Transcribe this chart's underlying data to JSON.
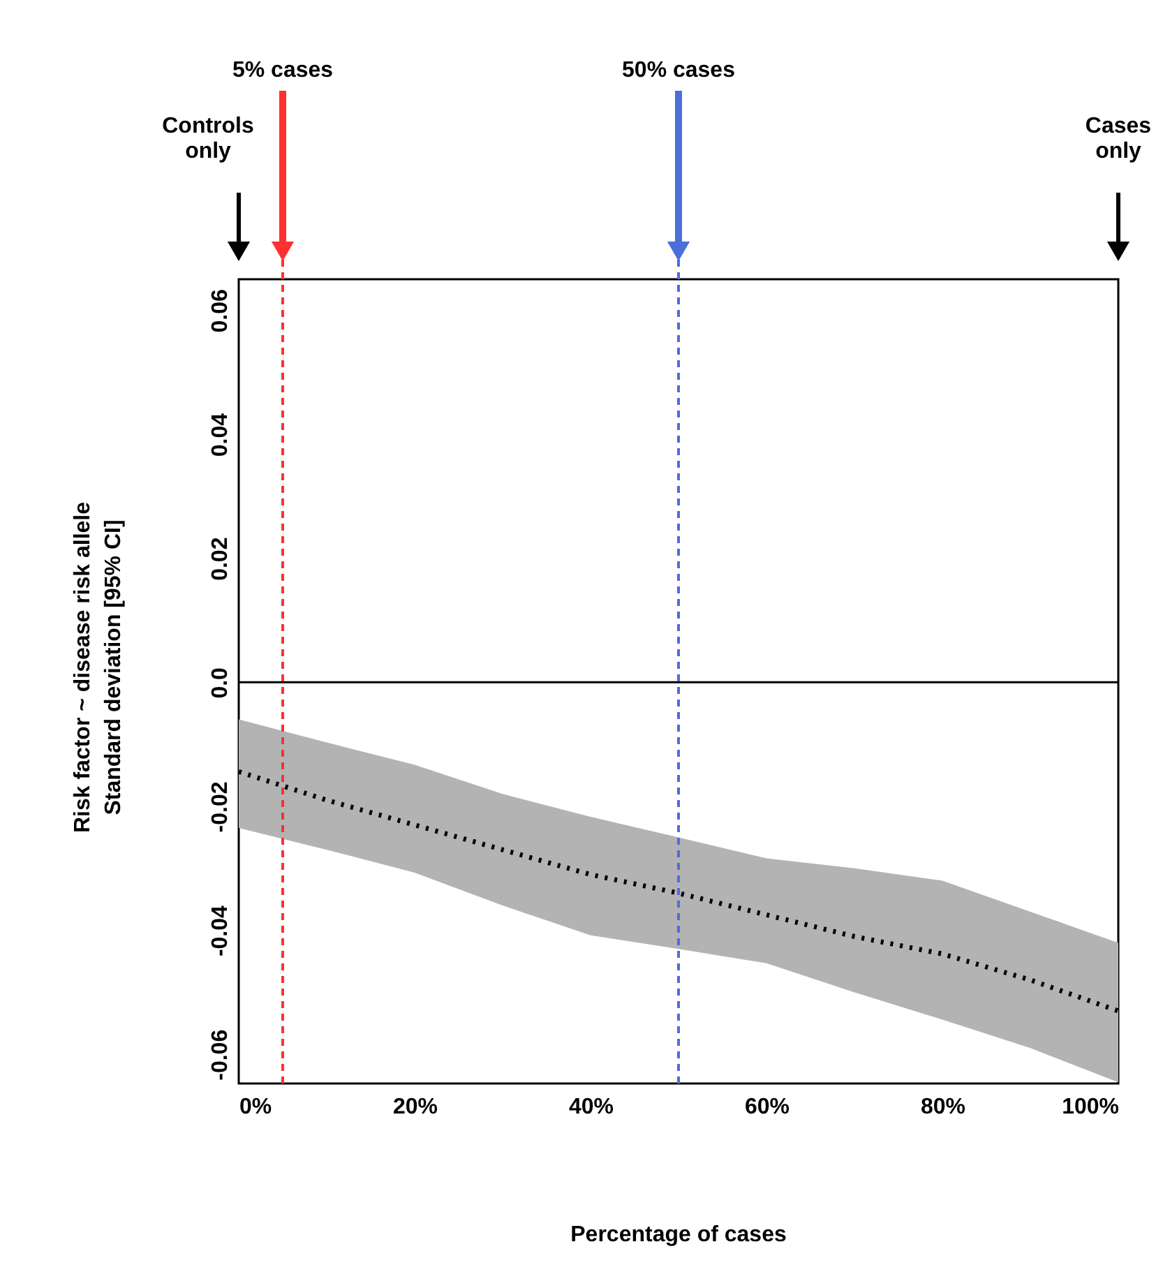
{
  "chart_data": {
    "type": "line",
    "xlabel": "Percentage of cases",
    "ylabel": "Risk factor ~ disease risk allele\nStandard deviation [95% CI]",
    "x": [
      0,
      10,
      20,
      30,
      40,
      50,
      60,
      70,
      80,
      90,
      100
    ],
    "series": [
      {
        "color": "#000000",
        "line_style": "dotted",
        "values": [
          -0.0144,
          -0.019,
          -0.023,
          -0.027,
          -0.031,
          -0.034,
          -0.0375,
          -0.041,
          -0.0438,
          -0.048,
          -0.053
        ],
        "lower": [
          -0.0235,
          -0.027,
          -0.0307,
          -0.036,
          -0.0408,
          -0.043,
          -0.0453,
          -0.05,
          -0.0544,
          -0.059,
          -0.0645
        ],
        "upper": [
          -0.006,
          -0.0097,
          -0.0133,
          -0.018,
          -0.0217,
          -0.025,
          -0.0284,
          -0.03,
          -0.032,
          -0.037,
          -0.042
        ]
      }
    ],
    "xlim": [
      0,
      100
    ],
    "ylim": [
      -0.0647,
      0.065
    ],
    "xticks": [
      {
        "value": 0,
        "label": "0%"
      },
      {
        "value": 20,
        "label": "20%"
      },
      {
        "value": 40,
        "label": "40%"
      },
      {
        "value": 60,
        "label": "60%"
      },
      {
        "value": 80,
        "label": "80%"
      },
      {
        "value": 100,
        "label": "100%"
      }
    ],
    "yticks": [
      -0.06,
      -0.04,
      -0.02,
      {
        "value": 0,
        "label": "0.0"
      },
      0.02,
      0.04,
      0.06
    ],
    "grid": false,
    "marker": "none",
    "ref_lines": [
      {
        "axis": "y",
        "value": 0,
        "color": "#000000",
        "line_style": "solid"
      },
      {
        "axis": "x",
        "value": 5,
        "label": "5% cases",
        "color": "#ff3030",
        "line_style": "dashed"
      },
      {
        "axis": "x",
        "value": 50,
        "label": "50% cases",
        "color": "#4a6fd8",
        "line_style": "dashed"
      }
    ],
    "annotations": [
      "Controls only",
      "Cases only"
    ]
  }
}
